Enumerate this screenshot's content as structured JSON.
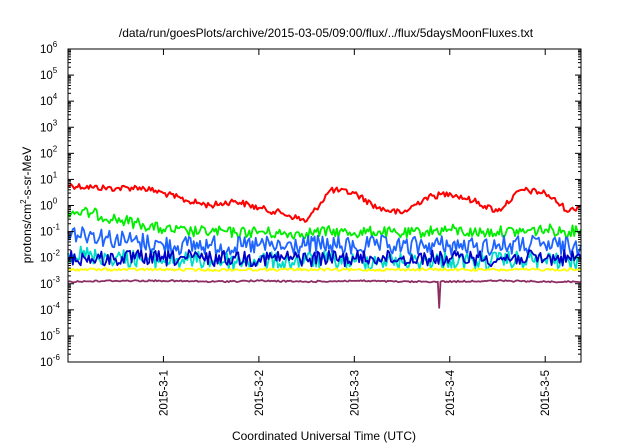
{
  "chart_data": {
    "type": "line",
    "title": "/data/run/goesPlots/archive/2015-03-05/09:00/flux/../flux/5daysMoonFluxes.txt",
    "xlabel": "Coordinated Universal Time (UTC)",
    "ylabel": "protons/cm2-s-sr-MeV",
    "ylabel_parts": {
      "base": "protons/cm",
      "sup": "2",
      "rest": "-s-sr-MeV"
    },
    "y_scale": "log",
    "ylim": [
      1e-06,
      1000000.0
    ],
    "y_ticks": [
      {
        "base": "10",
        "exp": "-6"
      },
      {
        "base": "10",
        "exp": "-5"
      },
      {
        "base": "10",
        "exp": "-4"
      },
      {
        "base": "10",
        "exp": "-3"
      },
      {
        "base": "10",
        "exp": "-2"
      },
      {
        "base": "10",
        "exp": "-1"
      },
      {
        "base": "10",
        "exp": "0"
      },
      {
        "base": "10",
        "exp": "1"
      },
      {
        "base": "10",
        "exp": "2"
      },
      {
        "base": "10",
        "exp": "3"
      },
      {
        "base": "10",
        "exp": "4"
      },
      {
        "base": "10",
        "exp": "5"
      },
      {
        "base": "10",
        "exp": "6"
      }
    ],
    "xlim": [
      "2015-02-28T00:00",
      "2015-03-05T09:00"
    ],
    "x_ticks": [
      "2015-3-1",
      "2015-3-2",
      "2015-3-3",
      "2015-3-4",
      "2015-3-5"
    ],
    "grid": false,
    "legend": "none",
    "series": [
      {
        "color": "#ff0000",
        "x": [
          "2015-02-28T00:00",
          "2015-02-28T06:00",
          "2015-02-28T12:00",
          "2015-02-28T18:00",
          "2015-03-01T00:00",
          "2015-03-01T06:00",
          "2015-03-01T12:00",
          "2015-03-01T18:00",
          "2015-03-02T00:00",
          "2015-03-02T06:00",
          "2015-03-02T12:00",
          "2015-03-02T18:00",
          "2015-03-03T00:00",
          "2015-03-03T06:00",
          "2015-03-03T12:00",
          "2015-03-03T18:00",
          "2015-03-04T00:00",
          "2015-03-04T06:00",
          "2015-03-04T12:00",
          "2015-03-04T18:00",
          "2015-03-05T00:00",
          "2015-03-05T06:00",
          "2015-03-05T09:00"
        ],
        "values": [
          6,
          5,
          4.5,
          5,
          3,
          1.5,
          1,
          1.5,
          0.8,
          0.5,
          0.25,
          4,
          3,
          0.8,
          0.5,
          2,
          3,
          1.5,
          0.6,
          4,
          3,
          0.6,
          1
        ]
      },
      {
        "color": "#00ee00",
        "x": [
          "2015-02-28T00:00",
          "2015-02-28T06:00",
          "2015-02-28T12:00",
          "2015-02-28T18:00",
          "2015-03-01T00:00",
          "2015-03-01T06:00",
          "2015-03-01T12:00",
          "2015-03-01T18:00",
          "2015-03-02T00:00",
          "2015-03-02T06:00",
          "2015-03-02T12:00",
          "2015-03-02T18:00",
          "2015-03-03T00:00",
          "2015-03-03T06:00",
          "2015-03-03T12:00",
          "2015-03-03T18:00",
          "2015-03-04T00:00",
          "2015-03-04T06:00",
          "2015-03-04T12:00",
          "2015-03-04T18:00",
          "2015-03-05T00:00",
          "2015-03-05T06:00",
          "2015-03-05T09:00"
        ],
        "values": [
          0.6,
          0.5,
          0.3,
          0.2,
          0.12,
          0.1,
          0.1,
          0.09,
          0.1,
          0.08,
          0.09,
          0.1,
          0.09,
          0.1,
          0.08,
          0.1,
          0.12,
          0.09,
          0.1,
          0.1,
          0.12,
          0.1,
          0.12
        ]
      },
      {
        "color": "#1e64ff",
        "x": [
          "2015-02-28T00:00",
          "2015-02-28T06:00",
          "2015-02-28T12:00",
          "2015-02-28T18:00",
          "2015-03-01T00:00",
          "2015-03-01T06:00",
          "2015-03-01T12:00",
          "2015-03-01T18:00",
          "2015-03-02T00:00",
          "2015-03-02T06:00",
          "2015-03-02T12:00",
          "2015-03-02T18:00",
          "2015-03-03T00:00",
          "2015-03-03T06:00",
          "2015-03-03T12:00",
          "2015-03-03T18:00",
          "2015-03-04T00:00",
          "2015-03-04T06:00",
          "2015-03-04T12:00",
          "2015-03-04T18:00",
          "2015-03-05T00:00",
          "2015-03-05T06:00",
          "2015-03-05T09:00"
        ],
        "values": [
          0.1,
          0.08,
          0.05,
          0.04,
          0.03,
          0.03,
          0.03,
          0.025,
          0.03,
          0.025,
          0.03,
          0.03,
          0.025,
          0.03,
          0.025,
          0.03,
          0.03,
          0.025,
          0.03,
          0.03,
          0.03,
          0.025,
          0.03
        ]
      },
      {
        "color": "#00dcc8",
        "x": [
          "2015-02-28T00:00",
          "2015-02-28T06:00",
          "2015-02-28T12:00",
          "2015-02-28T18:00",
          "2015-03-01T00:00",
          "2015-03-01T06:00",
          "2015-03-01T12:00",
          "2015-03-01T18:00",
          "2015-03-02T00:00",
          "2015-03-02T06:00",
          "2015-03-02T12:00",
          "2015-03-02T18:00",
          "2015-03-03T00:00",
          "2015-03-03T06:00",
          "2015-03-03T12:00",
          "2015-03-03T18:00",
          "2015-03-04T00:00",
          "2015-03-04T06:00",
          "2015-03-04T12:00",
          "2015-03-04T18:00",
          "2015-03-05T00:00",
          "2015-03-05T06:00",
          "2015-03-05T09:00"
        ],
        "values": [
          0.015,
          0.012,
          0.01,
          0.009,
          0.008,
          0.008,
          0.008,
          0.007,
          0.008,
          0.007,
          0.008,
          0.008,
          0.007,
          0.008,
          0.007,
          0.008,
          0.008,
          0.007,
          0.008,
          0.008,
          0.008,
          0.007,
          0.008
        ]
      },
      {
        "color": "#0000c8",
        "x": [
          "2015-02-28T00:00",
          "2015-02-28T06:00",
          "2015-02-28T12:00",
          "2015-02-28T18:00",
          "2015-03-01T00:00",
          "2015-03-01T06:00",
          "2015-03-01T12:00",
          "2015-03-01T18:00",
          "2015-03-02T00:00",
          "2015-03-02T06:00",
          "2015-03-02T12:00",
          "2015-03-02T18:00",
          "2015-03-03T00:00",
          "2015-03-03T06:00",
          "2015-03-03T12:00",
          "2015-03-03T18:00",
          "2015-03-04T00:00",
          "2015-03-04T06:00",
          "2015-03-04T12:00",
          "2015-03-04T18:00",
          "2015-03-05T00:00",
          "2015-03-05T06:00",
          "2015-03-05T09:00"
        ],
        "values": [
          0.01,
          0.009,
          0.009,
          0.01,
          0.009,
          0.01,
          0.009,
          0.01,
          0.009,
          0.01,
          0.009,
          0.01,
          0.009,
          0.01,
          0.009,
          0.01,
          0.009,
          0.01,
          0.009,
          0.01,
          0.009,
          0.01,
          0.009
        ]
      },
      {
        "color": "#ffff00",
        "x": [
          "2015-02-28T00:00",
          "2015-02-28T12:00",
          "2015-03-01T00:00",
          "2015-03-01T12:00",
          "2015-03-02T00:00",
          "2015-03-02T12:00",
          "2015-03-03T00:00",
          "2015-03-03T12:00",
          "2015-03-04T00:00",
          "2015-03-04T12:00",
          "2015-03-05T00:00",
          "2015-03-05T09:00"
        ],
        "values": [
          0.0035,
          0.0035,
          0.0035,
          0.0034,
          0.0035,
          0.0035,
          0.0034,
          0.0035,
          0.0035,
          0.0034,
          0.0035,
          0.0035
        ]
      },
      {
        "color": "#8c2d64",
        "x": [
          "2015-02-28T00:00",
          "2015-02-28T12:00",
          "2015-03-01T00:00",
          "2015-03-01T12:00",
          "2015-03-02T00:00",
          "2015-03-02T12:00",
          "2015-03-03T00:00",
          "2015-03-03T12:00",
          "2015-03-03T21:00",
          "2015-03-03T21:20",
          "2015-03-03T21:40",
          "2015-03-04T12:00",
          "2015-03-05T00:00",
          "2015-03-05T09:00"
        ],
        "values": [
          0.0012,
          0.0013,
          0.0013,
          0.0012,
          0.0013,
          0.0012,
          0.0013,
          0.0012,
          0.0012,
          0.00012,
          0.0012,
          0.0013,
          0.0012,
          0.0012
        ]
      }
    ]
  }
}
